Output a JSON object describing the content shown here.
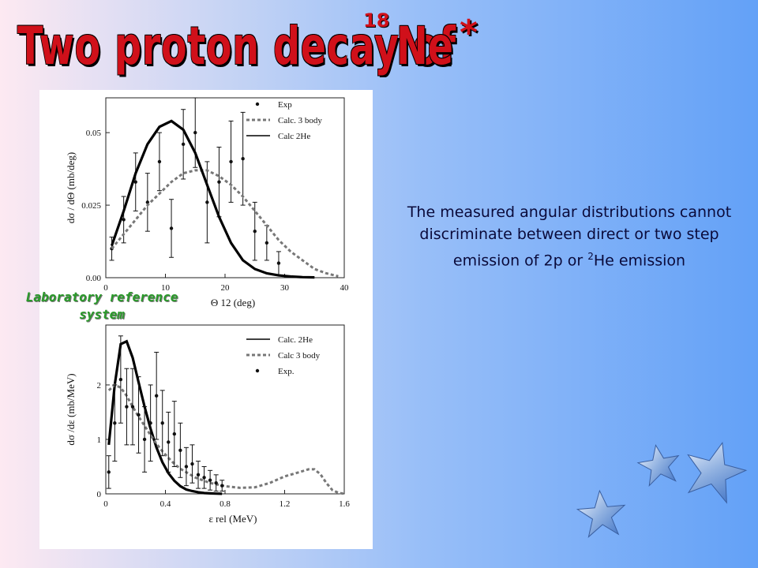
{
  "slide": {
    "title_main": "Two proton decay of",
    "title_superscript": "18",
    "title_element": "Ne",
    "title_star": "*",
    "caption_line1": "The measured angular distributions cannot discriminate between direct or two step emission of 2p or ",
    "caption_sup": "2",
    "caption_line2": "He emission",
    "lab_label": "Laboratory reference system"
  },
  "chart_data": [
    {
      "type": "scatter",
      "title": "",
      "xlabel": "Θ 12 (deg)",
      "ylabel": "dσ / dΘ (mb/deg)",
      "xlim": [
        0,
        40
      ],
      "ylim": [
        0,
        0.062
      ],
      "xticks": [
        "0",
        "10",
        "20",
        "30",
        "40"
      ],
      "yticks": [
        "0.00",
        "0.025",
        "0.05"
      ],
      "legend_position": "top-right",
      "legend": [
        "Exp",
        "Calc. 3 body",
        "Calc 2He"
      ],
      "series": [
        {
          "name": "Exp",
          "style": "points-with-errorbars",
          "x": [
            1,
            3,
            5,
            7,
            9,
            11,
            13,
            15,
            17,
            19,
            21,
            23,
            25,
            27,
            29
          ],
          "y": [
            0.01,
            0.02,
            0.033,
            0.026,
            0.04,
            0.017,
            0.046,
            0.05,
            0.026,
            0.033,
            0.04,
            0.041,
            0.016,
            0.012,
            0.005
          ],
          "err": [
            0.004,
            0.008,
            0.01,
            0.01,
            0.01,
            0.01,
            0.012,
            0.012,
            0.014,
            0.012,
            0.014,
            0.016,
            0.01,
            0.006,
            0.004
          ]
        },
        {
          "name": "Calc. 3 body",
          "style": "dashed",
          "x": [
            1,
            3,
            5,
            7,
            9,
            11,
            13,
            15,
            17,
            19,
            21,
            23,
            25,
            27,
            29,
            31,
            33,
            35,
            37,
            39
          ],
          "y": [
            0.01,
            0.015,
            0.02,
            0.025,
            0.029,
            0.033,
            0.036,
            0.037,
            0.037,
            0.035,
            0.032,
            0.028,
            0.023,
            0.018,
            0.013,
            0.009,
            0.006,
            0.003,
            0.0015,
            0.0005
          ]
        },
        {
          "name": "Calc 2He",
          "style": "solid-thick",
          "x": [
            1,
            3,
            5,
            7,
            9,
            11,
            13,
            15,
            17,
            19,
            21,
            23,
            25,
            27,
            29,
            31,
            33,
            35
          ],
          "y": [
            0.011,
            0.023,
            0.036,
            0.046,
            0.052,
            0.054,
            0.051,
            0.043,
            0.032,
            0.021,
            0.012,
            0.006,
            0.003,
            0.0015,
            0.0008,
            0.0004,
            0.0002,
            0.0001
          ]
        }
      ]
    },
    {
      "type": "scatter",
      "title": "",
      "xlabel": "ε rel (MeV)",
      "ylabel": "dσ /dε (mb/MeV)",
      "xlim": [
        0,
        1.6
      ],
      "ylim": [
        0,
        3.1
      ],
      "xticks": [
        "0",
        "0.4",
        "0.8",
        "1.2",
        "1.6"
      ],
      "yticks": [
        "0",
        "1",
        "2"
      ],
      "legend_position": "top-right",
      "legend": [
        "Calc. 2He",
        "Calc 3 body",
        "Exp."
      ],
      "series": [
        {
          "name": "Calc. 2He",
          "style": "solid-thick",
          "x": [
            0.02,
            0.06,
            0.1,
            0.14,
            0.18,
            0.22,
            0.26,
            0.3,
            0.34,
            0.38,
            0.42,
            0.46,
            0.5,
            0.54,
            0.58,
            0.62,
            0.66,
            0.7,
            0.74,
            0.78
          ],
          "y": [
            0.9,
            2.0,
            2.75,
            2.8,
            2.5,
            2.05,
            1.6,
            1.2,
            0.85,
            0.58,
            0.38,
            0.24,
            0.14,
            0.08,
            0.05,
            0.03,
            0.015,
            0.008,
            0.004,
            0.002
          ]
        },
        {
          "name": "Calc 3 body",
          "style": "dashed",
          "x": [
            0.02,
            0.06,
            0.1,
            0.14,
            0.18,
            0.22,
            0.26,
            0.3,
            0.34,
            0.38,
            0.42,
            0.46,
            0.5,
            0.6,
            0.7,
            0.8,
            0.9,
            1.0,
            1.1,
            1.2,
            1.3,
            1.36,
            1.4,
            1.44,
            1.48,
            1.52,
            1.56,
            1.6
          ],
          "y": [
            1.9,
            2.0,
            1.95,
            1.8,
            1.6,
            1.42,
            1.25,
            1.08,
            0.92,
            0.78,
            0.66,
            0.55,
            0.46,
            0.3,
            0.2,
            0.14,
            0.11,
            0.12,
            0.2,
            0.32,
            0.4,
            0.45,
            0.45,
            0.36,
            0.2,
            0.07,
            0.02,
            0.0
          ]
        },
        {
          "name": "Exp.",
          "style": "points-with-errorbars",
          "x": [
            0.02,
            0.06,
            0.1,
            0.14,
            0.18,
            0.22,
            0.26,
            0.3,
            0.34,
            0.38,
            0.42,
            0.46,
            0.5,
            0.54,
            0.58,
            0.62,
            0.66,
            0.7,
            0.74,
            0.78
          ],
          "y": [
            0.4,
            1.3,
            2.1,
            1.6,
            1.6,
            1.45,
            1.0,
            1.3,
            1.8,
            1.3,
            0.95,
            1.1,
            0.8,
            0.5,
            0.55,
            0.35,
            0.3,
            0.25,
            0.2,
            0.15
          ],
          "err": [
            0.3,
            0.7,
            0.8,
            0.7,
            0.7,
            0.7,
            0.6,
            0.7,
            0.8,
            0.6,
            0.55,
            0.6,
            0.5,
            0.35,
            0.35,
            0.25,
            0.2,
            0.18,
            0.15,
            0.1
          ]
        }
      ]
    }
  ]
}
